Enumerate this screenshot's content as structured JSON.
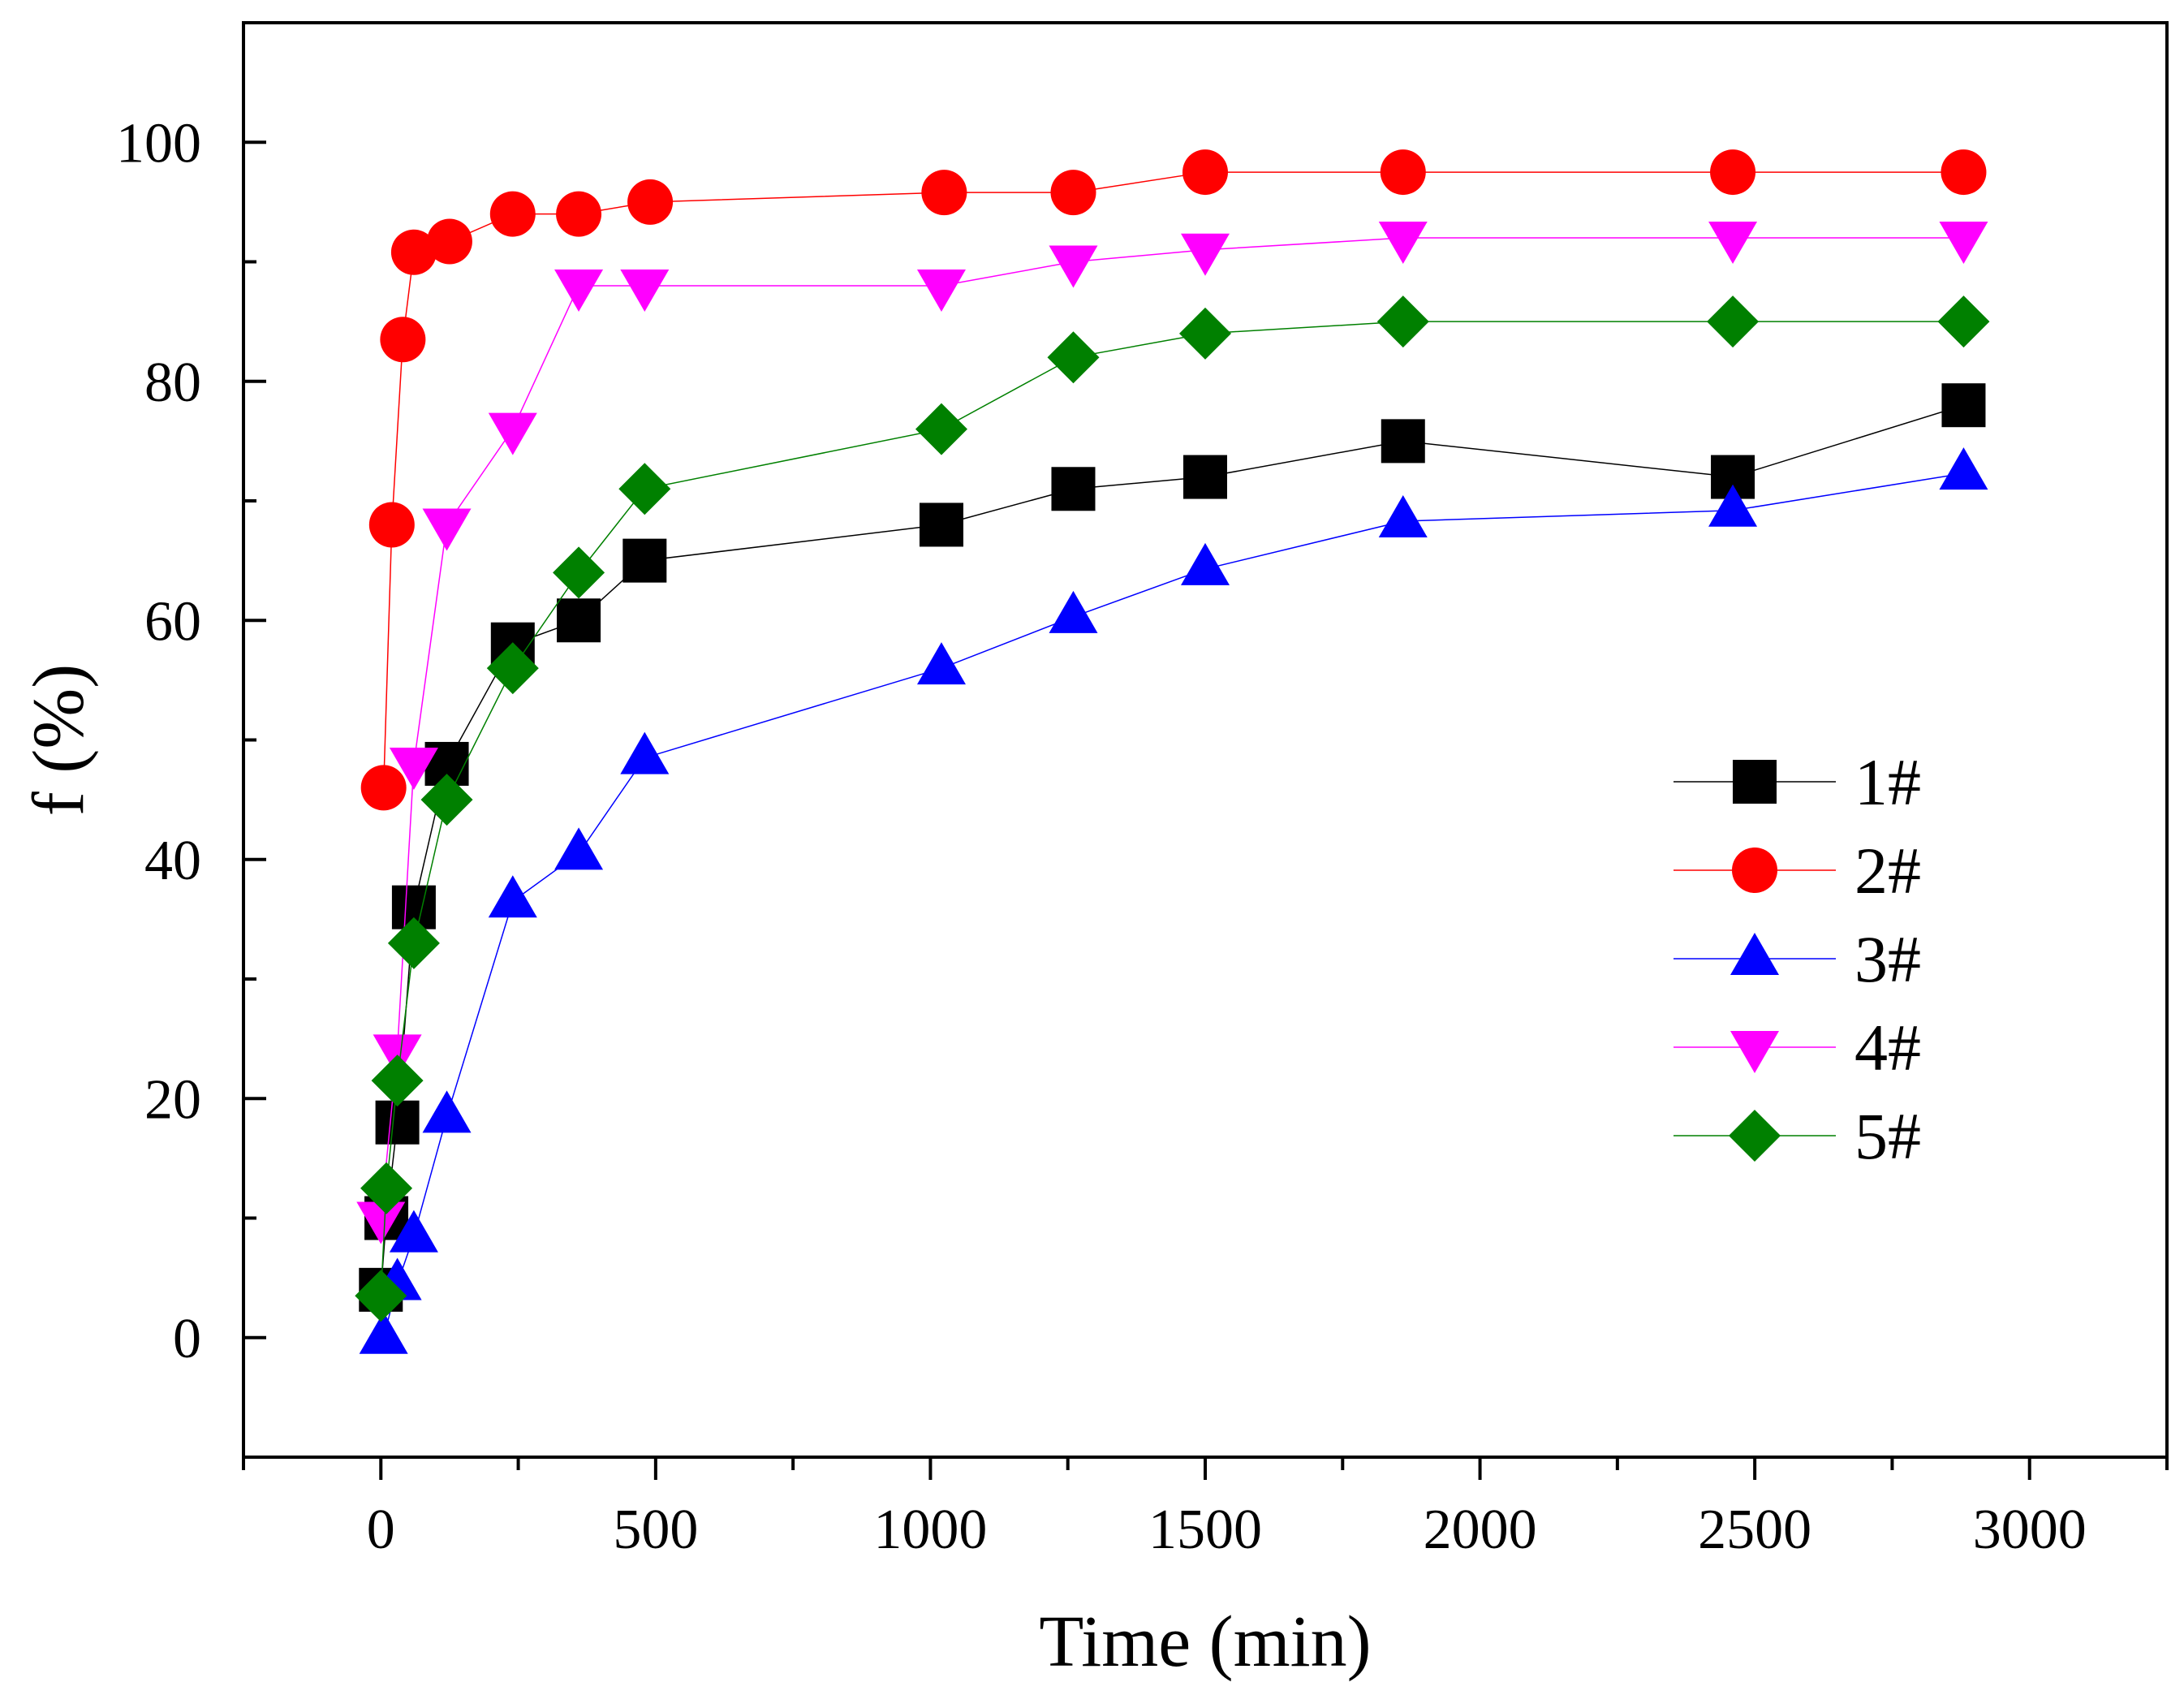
{
  "chart_data": {
    "type": "line",
    "title": "",
    "xlabel": "Time (min)",
    "ylabel": "f (%)",
    "xlim": [
      -250,
      3250
    ],
    "ylim": [
      -10,
      110
    ],
    "xticks": [
      0,
      500,
      1000,
      1500,
      2000,
      2500,
      3000
    ],
    "yticks": [
      0,
      20,
      40,
      60,
      80,
      100
    ],
    "xtick_labels": [
      "0",
      "500",
      "1000",
      "1500",
      "2000",
      "2500",
      "3000"
    ],
    "ytick_labels": [
      "0",
      "20",
      "40",
      "60",
      "80",
      "100"
    ],
    "grid": false,
    "legend_position": "right",
    "series": [
      {
        "name": "1#",
        "color": "#000000",
        "marker": "square",
        "x": [
          0,
          10,
          30,
          60,
          120,
          240,
          360,
          480,
          1020,
          1260,
          1500,
          1860,
          2460,
          2880
        ],
        "y": [
          4,
          10,
          18,
          36,
          48,
          58,
          60,
          65,
          68,
          71,
          72,
          75,
          72,
          78
        ]
      },
      {
        "name": "2#",
        "color": "#ff0000",
        "marker": "circle",
        "x": [
          5,
          20,
          40,
          60,
          125,
          240,
          360,
          490,
          1025,
          1260,
          1500,
          1860,
          2460,
          2880
        ],
        "y": [
          46,
          68,
          83.5,
          90.8,
          91.7,
          94,
          94,
          95,
          95.8,
          95.8,
          97.5,
          97.5,
          97.5,
          97.5
        ]
      },
      {
        "name": "3#",
        "color": "#0000ff",
        "marker": "triangle-up",
        "x": [
          5,
          30,
          60,
          120,
          240,
          360,
          480,
          1020,
          1260,
          1500,
          1860,
          2460,
          2880
        ],
        "y": [
          0,
          4.5,
          8.5,
          18.5,
          36.5,
          40.5,
          48.5,
          56,
          60.3,
          64.3,
          68.3,
          69.2,
          72.3
        ]
      },
      {
        "name": "4#",
        "color": "#ff00ff",
        "marker": "triangle-down",
        "x": [
          0,
          30,
          60,
          120,
          240,
          360,
          480,
          1020,
          1260,
          1500,
          1860,
          2460,
          2880
        ],
        "y": [
          10,
          24,
          48,
          68,
          76,
          88,
          88,
          88,
          90,
          91,
          92,
          92,
          92
        ]
      },
      {
        "name": "5#",
        "color": "#008000",
        "marker": "diamond",
        "x": [
          0,
          10,
          30,
          60,
          120,
          240,
          360,
          480,
          1020,
          1260,
          1500,
          1860,
          2460,
          2880
        ],
        "y": [
          3.5,
          12.5,
          21.5,
          33,
          45,
          56,
          64,
          71,
          76,
          82,
          84,
          85,
          85,
          85
        ]
      }
    ]
  }
}
